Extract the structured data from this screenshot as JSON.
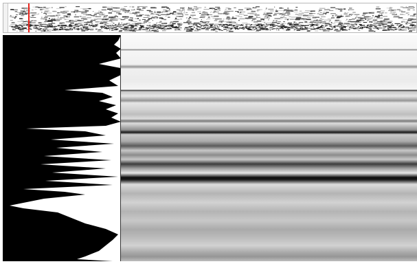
{
  "colors": {
    "background": "#ffffff",
    "playhead": "#e8231c",
    "spectrum_fill": "#000000",
    "stripe_dark": "#000000",
    "stripe_light": "#ffffff"
  },
  "overview": {
    "playhead_fraction": 0.06
  },
  "icons": {
    "playhead": "playhead-marker-icon"
  }
}
